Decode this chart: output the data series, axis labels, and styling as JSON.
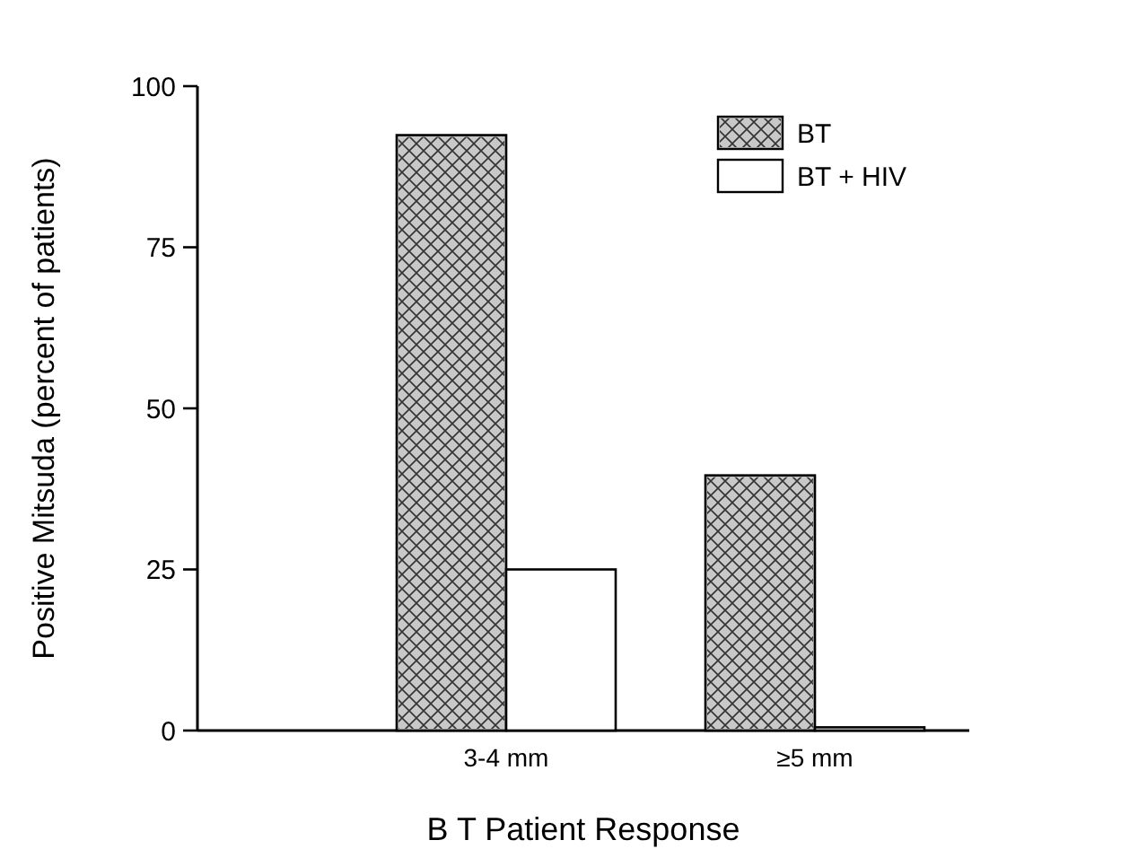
{
  "chart_data": {
    "type": "bar",
    "xlabel": "B T  Patient Response",
    "ylabel": "Positive Mitsuda (percent of patients)",
    "categories": [
      "3-4 mm",
      "≥5 mm"
    ],
    "series": [
      {
        "name": "BT",
        "color": "#c8c8c8",
        "values": [
          92.4,
          39.6
        ]
      },
      {
        "name": "BT + HIV",
        "color": "#ffffff",
        "values": [
          25,
          0.5
        ]
      }
    ],
    "ylim": [
      0,
      100
    ],
    "yticks": [
      0,
      25,
      50,
      75,
      100
    ],
    "legend": "top right"
  }
}
